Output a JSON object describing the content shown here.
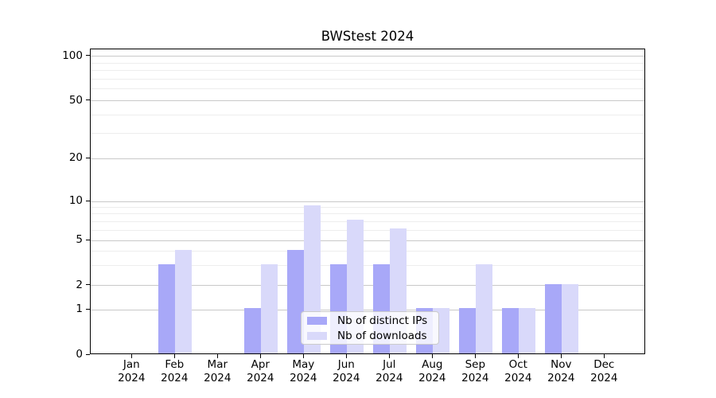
{
  "chart_data": {
    "type": "bar",
    "title": "BWStest 2024",
    "categories": [
      "Jan",
      "Feb",
      "Mar",
      "Apr",
      "May",
      "Jun",
      "Jul",
      "Aug",
      "Sep",
      "Oct",
      "Nov",
      "Dec"
    ],
    "year_label": "2024",
    "series": [
      {
        "name": "Nb of distinct IPs",
        "color": "#a8a8f8",
        "values": [
          0,
          3,
          0,
          1,
          4,
          3,
          3,
          1,
          1,
          1,
          2,
          0
        ]
      },
      {
        "name": "Nb of downloads",
        "color": "#d9d9fa",
        "values": [
          0,
          4,
          0,
          3,
          9,
          7,
          6,
          1,
          3,
          1,
          2,
          0
        ]
      }
    ],
    "yaxis": {
      "scale": "log-like",
      "major_ticks": [
        0,
        1,
        2,
        5,
        10,
        20,
        50,
        100
      ],
      "minor_ticks": [
        3,
        4,
        6,
        7,
        8,
        9,
        30,
        40,
        60,
        70,
        80,
        90
      ],
      "ylim": [
        0,
        115
      ]
    },
    "legend": {
      "position": "lower center",
      "entries": [
        "Nb of distinct IPs",
        "Nb of downloads"
      ]
    },
    "grid": true
  }
}
